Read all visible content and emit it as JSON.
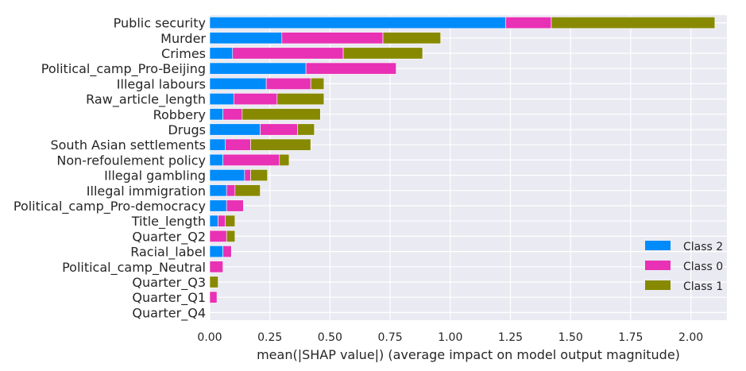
{
  "chart_data": {
    "type": "bar",
    "orientation": "horizontal",
    "stacked": true,
    "categories": [
      "Public security",
      "Murder",
      "Crimes",
      "Political_camp_Pro-Beijing",
      "Illegal labours",
      "Raw_article_length",
      "Robbery",
      "Drugs",
      "South Asian settlements",
      "Non-refoulement policy",
      "Illegal gambling",
      "Illegal immigration",
      "Political_camp_Pro-democracy",
      "Title_length",
      "Quarter_Q2",
      "Racial_label",
      "Political_camp_Neutral",
      "Quarter_Q3",
      "Quarter_Q1",
      "Quarter_Q4"
    ],
    "series": [
      {
        "name": "Class 2",
        "color": "#008bfb",
        "values": [
          1.23,
          0.3,
          0.095,
          0.4,
          0.235,
          0.1,
          0.055,
          0.21,
          0.065,
          0.055,
          0.145,
          0.07,
          0.07,
          0.035,
          0.0,
          0.055,
          0.0,
          0.0,
          0.0,
          0.0
        ]
      },
      {
        "name": "Class 0",
        "color": "#e831b4",
        "values": [
          0.19,
          0.42,
          0.46,
          0.375,
          0.185,
          0.18,
          0.08,
          0.155,
          0.105,
          0.235,
          0.025,
          0.035,
          0.07,
          0.03,
          0.07,
          0.035,
          0.055,
          0.0,
          0.03,
          0.0
        ]
      },
      {
        "name": "Class 1",
        "color": "#878a00",
        "values": [
          0.68,
          0.24,
          0.33,
          0.0,
          0.055,
          0.195,
          0.325,
          0.07,
          0.25,
          0.04,
          0.07,
          0.105,
          0.0,
          0.04,
          0.035,
          0.0,
          0.0,
          0.035,
          0.0,
          0.0
        ]
      }
    ],
    "xlabel": "mean(|SHAP value|) (average impact on model output magnitude)",
    "ylabel": "",
    "xlim": [
      0,
      2.15
    ],
    "xticks": [
      "0.00",
      "0.25",
      "0.50",
      "0.75",
      "1.00",
      "1.25",
      "1.50",
      "1.75",
      "2.00"
    ],
    "xtick_values": [
      0,
      0.25,
      0.5,
      0.75,
      1.0,
      1.25,
      1.5,
      1.75,
      2.0
    ],
    "grid": true,
    "legend_position": "bottom-right",
    "plot_background": "#eaeaf2"
  }
}
